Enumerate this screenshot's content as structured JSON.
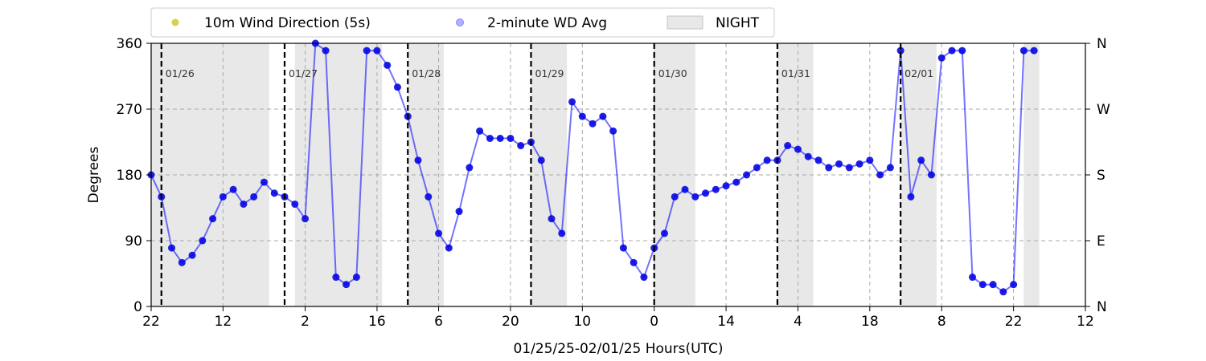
{
  "chart_data": {
    "type": "scatter",
    "title": "",
    "xlabel": "01/25/25-02/01/25  Hours(UTC)",
    "ylabel": "Degrees",
    "x_range_hours": [
      22,
      182
    ],
    "x_ticks": [
      {
        "hour": 22,
        "label": "22"
      },
      {
        "hour": 36,
        "label": "12"
      },
      {
        "hour": 52,
        "label": "2"
      },
      {
        "hour": 66,
        "label": "16"
      },
      {
        "hour": 78,
        "label": "6"
      },
      {
        "hour": 92,
        "label": "20"
      },
      {
        "hour": 106,
        "label": "10"
      },
      {
        "hour": 120,
        "label": "0"
      },
      {
        "hour": 134,
        "label": "14"
      },
      {
        "hour": 148,
        "label": "4"
      },
      {
        "hour": 162,
        "label": "18"
      },
      {
        "hour": 176,
        "label": "8"
      },
      {
        "hour": 190,
        "label": "22"
      },
      {
        "hour": 204,
        "label": "12"
      }
    ],
    "ylim": [
      0,
      360
    ],
    "y_ticks": [
      0,
      90,
      180,
      270,
      360
    ],
    "y_right_ticks": [
      {
        "value": 0,
        "label": "N"
      },
      {
        "value": 90,
        "label": "E"
      },
      {
        "value": 180,
        "label": "S"
      },
      {
        "value": 270,
        "label": "W"
      },
      {
        "value": 360,
        "label": "N"
      }
    ],
    "grid": true,
    "legend_placement": "top",
    "legend": [
      {
        "label": "10m Wind Direction (5s)",
        "kind": "marker",
        "color": "#bfbf00"
      },
      {
        "label": "2-minute WD Avg",
        "kind": "marker",
        "color": "#0000ff"
      },
      {
        "label": "NIGHT",
        "kind": "patch",
        "color": "#d9d9d9"
      }
    ],
    "night_periods": [
      [
        22,
        45
      ],
      [
        50,
        67
      ],
      [
        72,
        79
      ],
      [
        96,
        103
      ],
      [
        120,
        128
      ],
      [
        144,
        151
      ],
      [
        168,
        175
      ],
      [
        192,
        195
      ]
    ],
    "day_markers": [
      {
        "hour": 24,
        "label": "01/26"
      },
      {
        "hour": 48,
        "label": "01/27"
      },
      {
        "hour": 72,
        "label": "01/28"
      },
      {
        "hour": 96,
        "label": "01/29"
      },
      {
        "hour": 120,
        "label": "01/30"
      },
      {
        "hour": 144,
        "label": "01/31"
      },
      {
        "hour": 168,
        "label": "02/01"
      }
    ],
    "series": [
      {
        "name": "10m Wind Direction (5s)",
        "color": "#bfbf00",
        "x": [
          22,
          24,
          26,
          28,
          30,
          32,
          34,
          36,
          38,
          40,
          42,
          44,
          46,
          48,
          50,
          52,
          54,
          56,
          58,
          60,
          62,
          64,
          66,
          68,
          70,
          72,
          74,
          76,
          78,
          80,
          82,
          84,
          86,
          88,
          90,
          92,
          94,
          96,
          98,
          100,
          102,
          104,
          106,
          108,
          110,
          112,
          114,
          116,
          118,
          120,
          122,
          124,
          126,
          128,
          130,
          132,
          134,
          136,
          138,
          140,
          142,
          144,
          146,
          148,
          150,
          152,
          154,
          156,
          158,
          160,
          162,
          164,
          166,
          168,
          170,
          172,
          174,
          176,
          178,
          180,
          182,
          184,
          186,
          188,
          190,
          192,
          194
        ],
        "y": [
          180,
          150,
          80,
          60,
          70,
          90,
          120,
          150,
          160,
          140,
          150,
          170,
          155,
          150,
          140,
          120,
          360,
          350,
          40,
          30,
          40,
          350,
          350,
          330,
          300,
          260,
          200,
          150,
          100,
          80,
          130,
          190,
          240,
          230,
          230,
          230,
          220,
          225,
          200,
          120,
          100,
          280,
          260,
          250,
          260,
          240,
          80,
          60,
          40,
          80,
          100,
          150,
          160,
          150,
          155,
          160,
          165,
          170,
          180,
          190,
          200,
          200,
          220,
          215,
          205,
          200,
          190,
          195,
          190,
          195,
          200,
          180,
          190,
          350,
          150,
          200,
          180,
          340,
          350,
          350,
          40,
          30,
          30,
          20,
          30,
          350,
          350
        ]
      },
      {
        "name": "2-minute WD Avg",
        "color": "#0000ff",
        "x": [
          22,
          24,
          26,
          28,
          30,
          32,
          34,
          36,
          38,
          40,
          42,
          44,
          46,
          48,
          50,
          52,
          54,
          56,
          58,
          60,
          62,
          64,
          66,
          68,
          70,
          72,
          74,
          76,
          78,
          80,
          82,
          84,
          86,
          88,
          90,
          92,
          94,
          96,
          98,
          100,
          102,
          104,
          106,
          108,
          110,
          112,
          114,
          116,
          118,
          120,
          122,
          124,
          126,
          128,
          130,
          132,
          134,
          136,
          138,
          140,
          142,
          144,
          146,
          148,
          150,
          152,
          154,
          156,
          158,
          160,
          162,
          164,
          166,
          168,
          170,
          172,
          174,
          176,
          178,
          180,
          182,
          184,
          186,
          188,
          190,
          192,
          194
        ],
        "y": [
          180,
          150,
          80,
          60,
          70,
          90,
          120,
          150,
          160,
          140,
          150,
          170,
          155,
          150,
          140,
          120,
          360,
          350,
          40,
          30,
          40,
          350,
          350,
          330,
          300,
          260,
          200,
          150,
          100,
          80,
          130,
          190,
          240,
          230,
          230,
          230,
          220,
          225,
          200,
          120,
          100,
          280,
          260,
          250,
          260,
          240,
          80,
          60,
          40,
          80,
          100,
          150,
          160,
          150,
          155,
          160,
          165,
          170,
          180,
          190,
          200,
          200,
          220,
          215,
          205,
          200,
          190,
          195,
          190,
          195,
          200,
          180,
          190,
          350,
          150,
          200,
          180,
          340,
          350,
          350,
          40,
          30,
          30,
          20,
          30,
          350,
          350
        ]
      }
    ]
  }
}
